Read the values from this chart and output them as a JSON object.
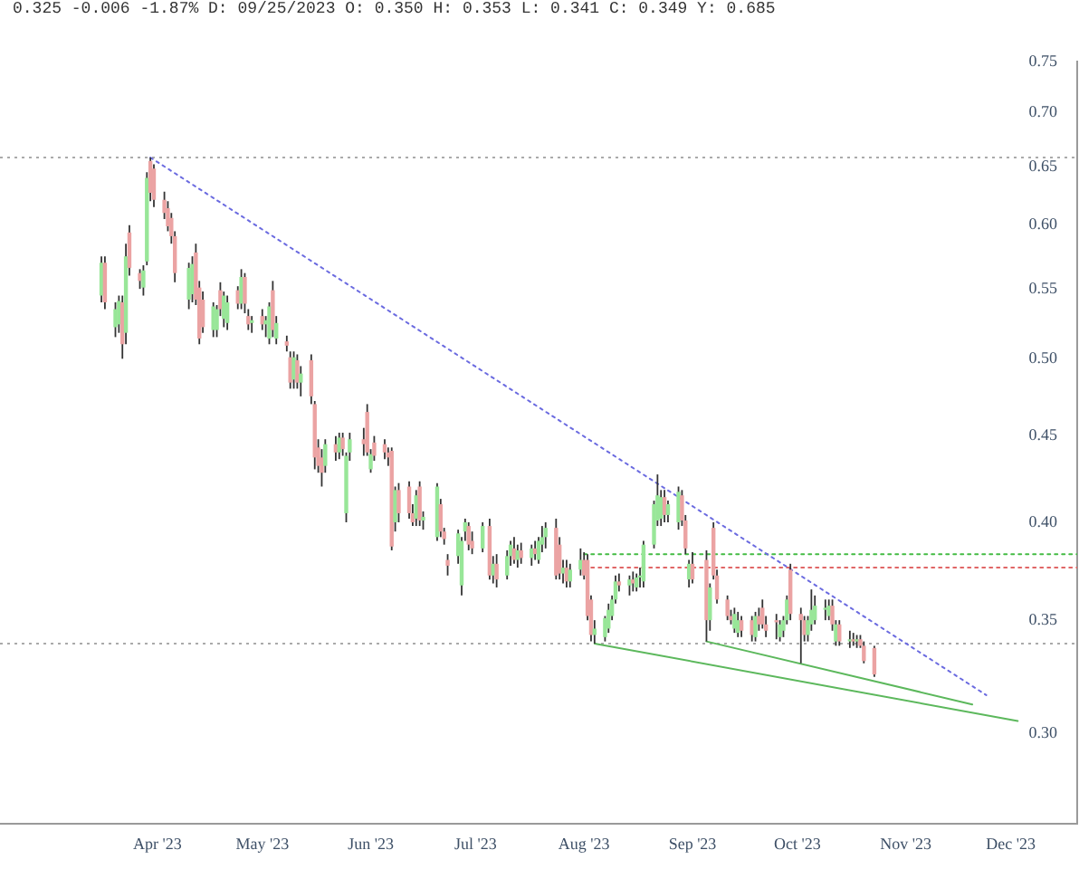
{
  "chart_data": {
    "type": "candlestick",
    "title": "0.325 -0.006 -1.87% D: 09/25/2023 O: 0.350 H: 0.353 L: 0.341 C: 0.349 Y: 0.685",
    "log": "y",
    "xlim": [
      "2023-02-15",
      "2023-12-20"
    ],
    "xticks": [
      {
        "value": "2023-04-01",
        "label": "Apr '23"
      },
      {
        "value": "2023-05-01",
        "label": "May '23"
      },
      {
        "value": "2023-06-01",
        "label": "Jun '23"
      },
      {
        "value": "2023-07-01",
        "label": "Jul '23"
      },
      {
        "value": "2023-08-01",
        "label": "Aug '23"
      },
      {
        "value": "2023-09-01",
        "label": "Sep '23"
      },
      {
        "value": "2023-10-01",
        "label": "Oct '23"
      },
      {
        "value": "2023-11-01",
        "label": "Nov '23"
      },
      {
        "value": "2023-12-01",
        "label": "Dec '23"
      }
    ],
    "ylim": [
      0.265,
      0.75
    ],
    "yticks": [
      {
        "value": 0.3,
        "label": "0.30"
      },
      0.35,
      {
        "value": 0.4,
        "label": "0.40"
      },
      0.45,
      {
        "value": 0.5,
        "label": "0.50"
      },
      0.55,
      {
        "value": 0.6,
        "label": "0.60"
      },
      0.65,
      {
        "value": 0.7,
        "label": "0.70"
      },
      0.75
    ],
    "ref_lines": [
      {
        "axis": "y",
        "value": 0.658,
        "color": "#aaaaaa",
        "line_style": "dotted"
      },
      {
        "axis": "y",
        "value": 0.339,
        "color": "#aaaaaa",
        "line_style": "dotted"
      }
    ],
    "series": [
      {
        "x": [
          "2023-03-16",
          "2023-03-17",
          "2023-03-20",
          "2023-03-21",
          "2023-03-22",
          "2023-03-23",
          "2023-03-24",
          "2023-03-27",
          "2023-03-28",
          "2023-03-29",
          "2023-03-30",
          "2023-03-31",
          "2023-04-03",
          "2023-04-04",
          "2023-04-05",
          "2023-04-06",
          "2023-04-10",
          "2023-04-11",
          "2023-04-12",
          "2023-04-13",
          "2023-04-14",
          "2023-04-17",
          "2023-04-18",
          "2023-04-19",
          "2023-04-20",
          "2023-04-21",
          "2023-04-24",
          "2023-04-25",
          "2023-04-26",
          "2023-04-27",
          "2023-04-28",
          "2023-05-01",
          "2023-05-02",
          "2023-05-03",
          "2023-05-04",
          "2023-05-05",
          "2023-05-08",
          "2023-05-09",
          "2023-05-10",
          "2023-05-11",
          "2023-05-12",
          "2023-05-15",
          "2023-05-16",
          "2023-05-17",
          "2023-05-18",
          "2023-05-19",
          "2023-05-22",
          "2023-05-23",
          "2023-05-24",
          "2023-05-25",
          "2023-05-26",
          "2023-05-30",
          "2023-05-31",
          "2023-06-01",
          "2023-06-02",
          "2023-06-05",
          "2023-06-06",
          "2023-06-07",
          "2023-06-08",
          "2023-06-09",
          "2023-06-12",
          "2023-06-13",
          "2023-06-14",
          "2023-06-15",
          "2023-06-16",
          "2023-06-20",
          "2023-06-21",
          "2023-06-22",
          "2023-06-23",
          "2023-06-26",
          "2023-06-27",
          "2023-06-28",
          "2023-06-29",
          "2023-06-30",
          "2023-07-03",
          "2023-07-05",
          "2023-07-06",
          "2023-07-07",
          "2023-07-10",
          "2023-07-11",
          "2023-07-12",
          "2023-07-13",
          "2023-07-14",
          "2023-07-17",
          "2023-07-18",
          "2023-07-19",
          "2023-07-20",
          "2023-07-21",
          "2023-07-24",
          "2023-07-25",
          "2023-07-26",
          "2023-07-27",
          "2023-07-28",
          "2023-07-31",
          "2023-08-01",
          "2023-08-02",
          "2023-08-03",
          "2023-08-04",
          "2023-08-07",
          "2023-08-08",
          "2023-08-09",
          "2023-08-10",
          "2023-08-11",
          "2023-08-14",
          "2023-08-15",
          "2023-08-16",
          "2023-08-17",
          "2023-08-18",
          "2023-08-21",
          "2023-08-22",
          "2023-08-23",
          "2023-08-24",
          "2023-08-25",
          "2023-08-28",
          "2023-08-29",
          "2023-08-30",
          "2023-08-31",
          "2023-09-01",
          "2023-09-05",
          "2023-09-06",
          "2023-09-07",
          "2023-09-08",
          "2023-09-11",
          "2023-09-12",
          "2023-09-13",
          "2023-09-14",
          "2023-09-15",
          "2023-09-18",
          "2023-09-19",
          "2023-09-20",
          "2023-09-21",
          "2023-09-22",
          "2023-09-25",
          "2023-09-26",
          "2023-09-27",
          "2023-09-28",
          "2023-09-29",
          "2023-10-02",
          "2023-10-03",
          "2023-10-04",
          "2023-10-05",
          "2023-10-06",
          "2023-10-09",
          "2023-10-10",
          "2023-10-11",
          "2023-10-12",
          "2023-10-13",
          "2023-10-16",
          "2023-10-17",
          "2023-10-18",
          "2023-10-19",
          "2023-10-20",
          "2023-10-23"
        ],
        "ohlc": [
          [
            0.545,
            0.575,
            0.54,
            0.57
          ],
          [
            0.57,
            0.575,
            0.535,
            0.54
          ],
          [
            0.522,
            0.54,
            0.515,
            0.535
          ],
          [
            0.524,
            0.545,
            0.518,
            0.541
          ],
          [
            0.54,
            0.545,
            0.5,
            0.51
          ],
          [
            0.518,
            0.585,
            0.51,
            0.575
          ],
          [
            0.594,
            0.6,
            0.56,
            0.566
          ],
          [
            0.562,
            0.565,
            0.55,
            0.556
          ],
          [
            0.551,
            0.568,
            0.545,
            0.564
          ],
          [
            0.571,
            0.645,
            0.568,
            0.64
          ],
          [
            0.655,
            0.658,
            0.62,
            0.627
          ],
          [
            0.648,
            0.652,
            0.615,
            0.621
          ],
          [
            0.621,
            0.628,
            0.605,
            0.61
          ],
          [
            0.614,
            0.62,
            0.595,
            0.599
          ],
          [
            0.606,
            0.61,
            0.585,
            0.591
          ],
          [
            0.591,
            0.595,
            0.555,
            0.562
          ],
          [
            0.542,
            0.57,
            0.535,
            0.566
          ],
          [
            0.546,
            0.575,
            0.54,
            0.569
          ],
          [
            0.578,
            0.585,
            0.538,
            0.542
          ],
          [
            0.551,
            0.556,
            0.51,
            0.514
          ],
          [
            0.542,
            0.548,
            0.518,
            0.522
          ],
          [
            0.52,
            0.54,
            0.515,
            0.537
          ],
          [
            0.52,
            0.538,
            0.515,
            0.535
          ],
          [
            0.549,
            0.555,
            0.53,
            0.535
          ],
          [
            0.528,
            0.548,
            0.522,
            0.545
          ],
          [
            0.525,
            0.545,
            0.52,
            0.54
          ],
          [
            0.549,
            0.552,
            0.535,
            0.539
          ],
          [
            0.539,
            0.565,
            0.535,
            0.559
          ],
          [
            0.559,
            0.562,
            0.532,
            0.539
          ],
          [
            0.53,
            0.535,
            0.52,
            0.524
          ],
          [
            0.525,
            0.53,
            0.518,
            0.527
          ],
          [
            0.53,
            0.535,
            0.52,
            0.524
          ],
          [
            0.524,
            0.53,
            0.515,
            0.527
          ],
          [
            0.514,
            0.54,
            0.51,
            0.537
          ],
          [
            0.549,
            0.556,
            0.515,
            0.52
          ],
          [
            0.514,
            0.53,
            0.51,
            0.525
          ],
          [
            0.512,
            0.516,
            0.505,
            0.509
          ],
          [
            0.501,
            0.505,
            0.48,
            0.484
          ],
          [
            0.486,
            0.505,
            0.48,
            0.501
          ],
          [
            0.499,
            0.503,
            0.48,
            0.484
          ],
          [
            0.484,
            0.495,
            0.475,
            0.49
          ],
          [
            0.499,
            0.503,
            0.47,
            0.475
          ],
          [
            0.47,
            0.472,
            0.43,
            0.437
          ],
          [
            0.443,
            0.448,
            0.428,
            0.432
          ],
          [
            0.437,
            0.442,
            0.42,
            0.428
          ],
          [
            0.432,
            0.448,
            0.428,
            0.445
          ],
          [
            0.445,
            0.45,
            0.435,
            0.44
          ],
          [
            0.44,
            0.452,
            0.436,
            0.449
          ],
          [
            0.449,
            0.452,
            0.438,
            0.442
          ],
          [
            0.405,
            0.44,
            0.4,
            0.438
          ],
          [
            0.44,
            0.452,
            0.435,
            0.448
          ],
          [
            0.448,
            0.455,
            0.438,
            0.445
          ],
          [
            0.465,
            0.47,
            0.438,
            0.44
          ],
          [
            0.43,
            0.442,
            0.428,
            0.439
          ],
          [
            0.446,
            0.45,
            0.435,
            0.438
          ],
          [
            0.445,
            0.448,
            0.436,
            0.44
          ],
          [
            0.44,
            0.443,
            0.432,
            0.437
          ],
          [
            0.441,
            0.443,
            0.385,
            0.387
          ],
          [
            0.4,
            0.42,
            0.395,
            0.418
          ],
          [
            0.418,
            0.422,
            0.4,
            0.405
          ],
          [
            0.42,
            0.423,
            0.402,
            0.405
          ],
          [
            0.405,
            0.41,
            0.398,
            0.4
          ],
          [
            0.402,
            0.418,
            0.398,
            0.415
          ],
          [
            0.42,
            0.423,
            0.398,
            0.401
          ],
          [
            0.401,
            0.406,
            0.396,
            0.403
          ],
          [
            0.392,
            0.422,
            0.39,
            0.42
          ],
          [
            0.41,
            0.413,
            0.392,
            0.395
          ],
          [
            0.395,
            0.397,
            0.388,
            0.391
          ],
          [
            0.38,
            0.383,
            0.372,
            0.377
          ],
          [
            0.382,
            0.396,
            0.378,
            0.394
          ],
          [
            0.367,
            0.392,
            0.362,
            0.39
          ],
          [
            0.395,
            0.402,
            0.39,
            0.4
          ],
          [
            0.398,
            0.4,
            0.385,
            0.388
          ],
          [
            0.39,
            0.395,
            0.383,
            0.386
          ],
          [
            0.386,
            0.4,
            0.384,
            0.398
          ],
          [
            0.398,
            0.402,
            0.37,
            0.372
          ],
          [
            0.372,
            0.382,
            0.368,
            0.378
          ],
          [
            0.378,
            0.383,
            0.366,
            0.37
          ],
          [
            0.372,
            0.385,
            0.37,
            0.382
          ],
          [
            0.382,
            0.39,
            0.377,
            0.388
          ],
          [
            0.386,
            0.392,
            0.378,
            0.38
          ],
          [
            0.38,
            0.388,
            0.376,
            0.385
          ],
          [
            0.385,
            0.389,
            0.378,
            0.381
          ],
          [
            0.381,
            0.388,
            0.377,
            0.386
          ],
          [
            0.386,
            0.39,
            0.38,
            0.383
          ],
          [
            0.38,
            0.392,
            0.378,
            0.39
          ],
          [
            0.388,
            0.398,
            0.384,
            0.392
          ],
          [
            0.392,
            0.4,
            0.386,
            0.397
          ],
          [
            0.397,
            0.402,
            0.37,
            0.372
          ],
          [
            0.388,
            0.392,
            0.37,
            0.373
          ],
          [
            0.373,
            0.38,
            0.368,
            0.376
          ],
          [
            0.376,
            0.38,
            0.366,
            0.369
          ],
          [
            0.369,
            0.378,
            0.366,
            0.375
          ],
          [
            0.375,
            0.386,
            0.372,
            0.38
          ],
          [
            0.38,
            0.384,
            0.37,
            0.372
          ],
          [
            0.38,
            0.383,
            0.35,
            0.352
          ],
          [
            0.36,
            0.362,
            0.34,
            0.343
          ],
          [
            0.343,
            0.35,
            0.339,
            0.346
          ],
          [
            0.342,
            0.352,
            0.34,
            0.351
          ],
          [
            0.346,
            0.358,
            0.344,
            0.355
          ],
          [
            0.352,
            0.362,
            0.35,
            0.36
          ],
          [
            0.36,
            0.372,
            0.358,
            0.369
          ],
          [
            0.369,
            0.373,
            0.364,
            0.367
          ],
          [
            0.367,
            0.372,
            0.362,
            0.37
          ],
          [
            0.37,
            0.374,
            0.364,
            0.368
          ],
          [
            0.366,
            0.373,
            0.364,
            0.371
          ],
          [
            0.371,
            0.376,
            0.366,
            0.372
          ],
          [
            0.369,
            0.39,
            0.366,
            0.388
          ],
          [
            0.388,
            0.412,
            0.386,
            0.41
          ],
          [
            0.401,
            0.427,
            0.398,
            0.415
          ],
          [
            0.402,
            0.418,
            0.398,
            0.414
          ],
          [
            0.414,
            0.418,
            0.4,
            0.404
          ],
          [
            0.404,
            0.412,
            0.4,
            0.41
          ],
          [
            0.4,
            0.42,
            0.396,
            0.417
          ],
          [
            0.415,
            0.418,
            0.398,
            0.401
          ],
          [
            0.401,
            0.404,
            0.383,
            0.386
          ],
          [
            0.37,
            0.38,
            0.366,
            0.378
          ],
          [
            0.378,
            0.384,
            0.368,
            0.37
          ],
          [
            0.38,
            0.385,
            0.34,
            0.35
          ],
          [
            0.35,
            0.368,
            0.345,
            0.366
          ],
          [
            0.397,
            0.4,
            0.37,
            0.372
          ],
          [
            0.372,
            0.375,
            0.358,
            0.36
          ],
          [
            0.36,
            0.362,
            0.35,
            0.352
          ],
          [
            0.352,
            0.355,
            0.348,
            0.35
          ],
          [
            0.346,
            0.356,
            0.344,
            0.353
          ],
          [
            0.344,
            0.354,
            0.342,
            0.35
          ],
          [
            0.35,
            0.352,
            0.342,
            0.345
          ],
          [
            0.35,
            0.352,
            0.34,
            0.343
          ],
          [
            0.342,
            0.354,
            0.34,
            0.352
          ],
          [
            0.352,
            0.356,
            0.345,
            0.348
          ],
          [
            0.356,
            0.36,
            0.346,
            0.348
          ],
          [
            0.348,
            0.352,
            0.342,
            0.345
          ],
          [
            0.35,
            0.353,
            0.341,
            0.349
          ],
          [
            0.342,
            0.35,
            0.34,
            0.348
          ],
          [
            0.345,
            0.352,
            0.342,
            0.35
          ],
          [
            0.35,
            0.362,
            0.348,
            0.36
          ],
          [
            0.375,
            0.378,
            0.35,
            0.353
          ],
          [
            0.353,
            0.356,
            0.33,
            0.35
          ],
          [
            0.35,
            0.352,
            0.34,
            0.343
          ],
          [
            0.343,
            0.352,
            0.34,
            0.35
          ],
          [
            0.348,
            0.365,
            0.345,
            0.355
          ],
          [
            0.35,
            0.362,
            0.348,
            0.357
          ],
          [
            0.355,
            0.36,
            0.35,
            0.356
          ],
          [
            0.352,
            0.36,
            0.35,
            0.357
          ],
          [
            0.357,
            0.36,
            0.345,
            0.348
          ],
          [
            0.34,
            0.35,
            0.338,
            0.348
          ],
          [
            0.348,
            0.35,
            0.338,
            0.34
          ],
          [
            0.34,
            0.345,
            0.337,
            0.341
          ],
          [
            0.341,
            0.344,
            0.338,
            0.34
          ],
          [
            0.34,
            0.343,
            0.337,
            0.341
          ],
          [
            0.341,
            0.343,
            0.337,
            0.338
          ],
          [
            0.338,
            0.34,
            0.33,
            0.331
          ],
          [
            0.337,
            0.338,
            0.324,
            0.325
          ]
        ],
        "colors": [
          "#98e698",
          "#eba3a3",
          "#98e698",
          "#98e698",
          "#eba3a3",
          "#98e698",
          "#eba3a3",
          "#eba3a3",
          "#98e698",
          "#98e698",
          "#eba3a3",
          "#eba3a3",
          "#eba3a3",
          "#eba3a3",
          "#eba3a3",
          "#eba3a3",
          "#98e698",
          "#98e698",
          "#eba3a3",
          "#eba3a3",
          "#eba3a3",
          "#98e698",
          "#98e698",
          "#eba3a3",
          "#98e698",
          "#98e698",
          "#eba3a3",
          "#98e698",
          "#eba3a3",
          "#eba3a3",
          "#98e698",
          "#eba3a3",
          "#98e698",
          "#98e698",
          "#eba3a3",
          "#98e698",
          "#eba3a3",
          "#eba3a3",
          "#98e698",
          "#eba3a3",
          "#98e698",
          "#eba3a3",
          "#eba3a3",
          "#eba3a3",
          "#eba3a3",
          "#98e698",
          "#eba3a3",
          "#98e698",
          "#eba3a3",
          "#98e698",
          "#98e698",
          "#eba3a3",
          "#eba3a3",
          "#98e698",
          "#eba3a3",
          "#eba3a3",
          "#eba3a3",
          "#eba3a3",
          "#98e698",
          "#eba3a3",
          "#eba3a3",
          "#eba3a3",
          "#98e698",
          "#eba3a3",
          "#98e698",
          "#98e698",
          "#eba3a3",
          "#eba3a3",
          "#eba3a3",
          "#98e698",
          "#98e698",
          "#98e698",
          "#eba3a3",
          "#eba3a3",
          "#98e698",
          "#eba3a3",
          "#98e698",
          "#eba3a3",
          "#98e698",
          "#98e698",
          "#eba3a3",
          "#98e698",
          "#eba3a3",
          "#98e698",
          "#eba3a3",
          "#98e698",
          "#98e698",
          "#98e698",
          "#eba3a3",
          "#eba3a3",
          "#98e698",
          "#eba3a3",
          "#98e698",
          "#98e698",
          "#eba3a3",
          "#eba3a3",
          "#eba3a3",
          "#98e698",
          "#98e698",
          "#98e698",
          "#98e698",
          "#98e698",
          "#eba3a3",
          "#98e698",
          "#eba3a3",
          "#98e698",
          "#98e698",
          "#98e698",
          "#98e698",
          "#98e698",
          "#98e698",
          "#eba3a3",
          "#98e698",
          "#98e698",
          "#eba3a3",
          "#eba3a3",
          "#98e698",
          "#eba3a3",
          "#eba3a3",
          "#98e698",
          "#eba3a3",
          "#eba3a3",
          "#eba3a3",
          "#eba3a3",
          "#98e698",
          "#98e698",
          "#eba3a3",
          "#eba3a3",
          "#98e698",
          "#eba3a3",
          "#eba3a3",
          "#eba3a3",
          "#eba3a3",
          "#98e698",
          "#98e698",
          "#98e698",
          "#eba3a3",
          "#eba3a3",
          "#eba3a3",
          "#98e698",
          "#98e698",
          "#98e698",
          "#98e698",
          "#98e698",
          "#eba3a3",
          "#98e698",
          "#eba3a3",
          "#98e698",
          "#eba3a3",
          "#98e698",
          "#eba3a3",
          "#eba3a3",
          "#eba3a3"
        ]
      },
      {
        "type": "line",
        "color": "#6b6be0",
        "line_style": "dotted",
        "x": [
          "2023-03-30",
          "2023-11-24"
        ],
        "values": [
          0.658,
          0.316
        ]
      },
      {
        "type": "line",
        "color": "#5cb85c",
        "line_style": "solid",
        "x": [
          "2023-08-04",
          "2023-12-03"
        ],
        "values": [
          0.339,
          0.305
        ]
      },
      {
        "type": "line",
        "color": "#5cb85c",
        "line_style": "solid",
        "x": [
          "2023-09-05",
          "2023-11-20"
        ],
        "values": [
          0.34,
          0.312
        ]
      },
      {
        "type": "line",
        "color": "#44bb44",
        "line_style": "dotted",
        "x": [
          "2023-08-01",
          "2023-12-20"
        ],
        "values": [
          0.383,
          0.383
        ]
      },
      {
        "type": "line",
        "color": "#e06666",
        "line_style": "dotted",
        "x": [
          "2023-08-01",
          "2023-12-20"
        ],
        "values": [
          0.376,
          0.376
        ]
      }
    ]
  }
}
